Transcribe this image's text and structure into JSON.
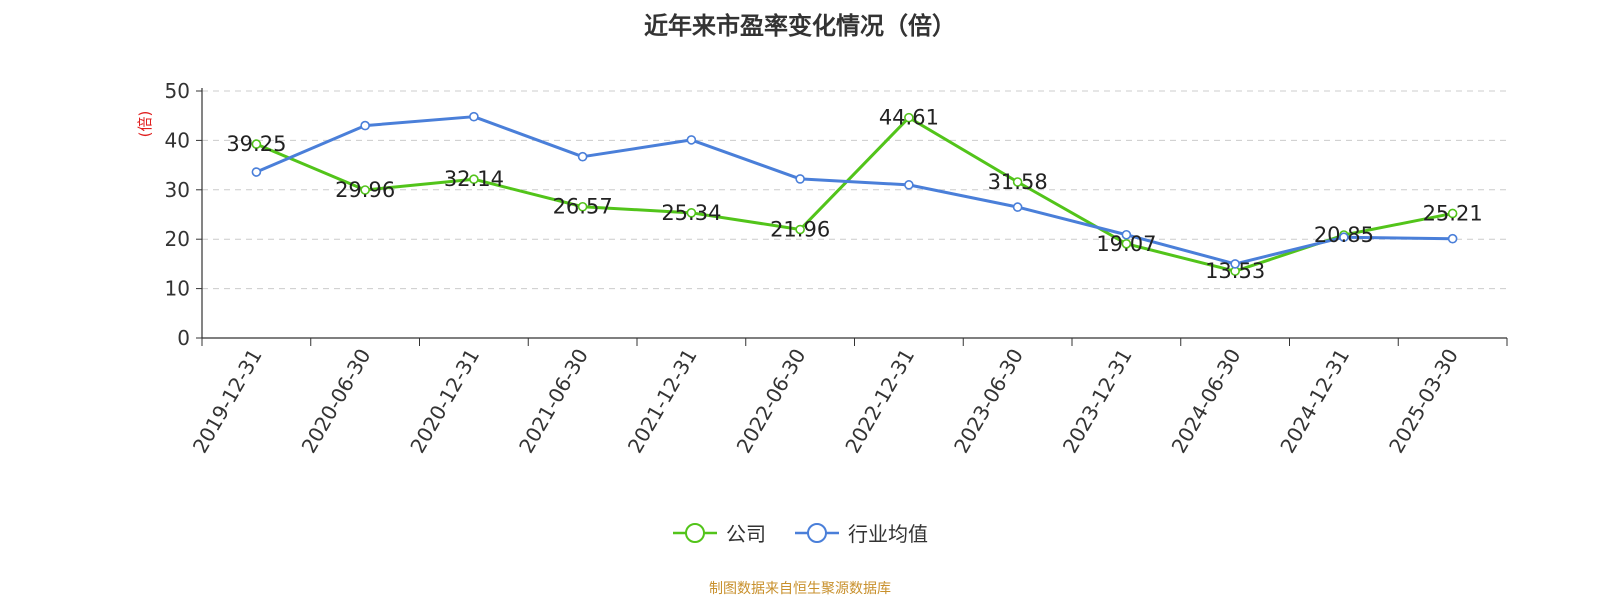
{
  "chart_data": {
    "type": "line",
    "title": "近年来市盈率变化情况（倍）",
    "ylabel": "(倍)",
    "xlabel": "",
    "categories": [
      "2019-12-31",
      "2020-06-30",
      "2020-12-31",
      "2021-06-30",
      "2021-12-31",
      "2022-06-30",
      "2022-12-31",
      "2023-06-30",
      "2023-12-31",
      "2024-06-30",
      "2024-12-31",
      "2025-03-30"
    ],
    "ylim": [
      0,
      50
    ],
    "yticks": [
      0,
      10,
      20,
      30,
      40,
      50
    ],
    "grid": true,
    "legend_position": "bottom",
    "series": [
      {
        "name": "公司",
        "color": "#52c41a",
        "show_labels": true,
        "values": [
          39.25,
          29.96,
          32.14,
          26.57,
          25.34,
          21.96,
          44.61,
          31.58,
          19.07,
          13.53,
          20.85,
          25.21
        ]
      },
      {
        "name": "行业均值",
        "color": "#4a7fd9",
        "show_labels": false,
        "values": [
          33.6,
          43.0,
          44.8,
          36.7,
          40.1,
          32.2,
          31.0,
          26.5,
          20.9,
          15.0,
          20.4,
          20.1
        ]
      }
    ]
  },
  "footer": "制图数据来自恒生聚源数据库"
}
